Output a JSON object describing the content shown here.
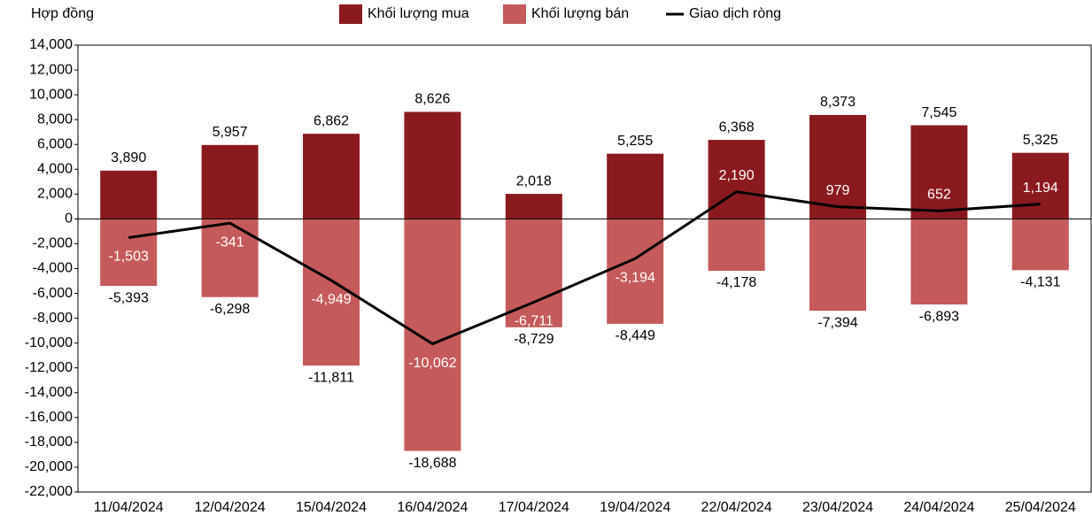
{
  "chart_data": {
    "type": "bar",
    "y_label": "Hợp đồng",
    "categories": [
      "11/04/2024",
      "12/04/2024",
      "15/04/2024",
      "16/04/2024",
      "17/04/2024",
      "19/04/2024",
      "22/04/2024",
      "23/04/2024",
      "24/04/2024",
      "25/04/2024"
    ],
    "series": [
      {
        "name": "Khối lượng mua",
        "color": "#8b1a1f",
        "type": "bar",
        "values": [
          3890,
          5957,
          6862,
          8626,
          2018,
          5255,
          6368,
          8373,
          7545,
          5325
        ],
        "value_labels": [
          "3,890",
          "5,957",
          "6,862",
          "8,626",
          "2,018",
          "5,255",
          "6,368",
          "8,373",
          "7,545",
          "5,325"
        ]
      },
      {
        "name": "Khối lượng bán",
        "color": "#c55a5a",
        "type": "bar",
        "values": [
          -5393,
          -6298,
          -11811,
          -18688,
          -8729,
          -8449,
          -4178,
          -7394,
          -6893,
          -4131
        ],
        "value_labels": [
          "-5,393",
          "-6,298",
          "-11,811",
          "-18,688",
          "-8,729",
          "-8,449",
          "-4,178",
          "-7,394",
          "-6,893",
          "-4,131"
        ]
      },
      {
        "name": "Giao dịch ròng",
        "color": "#000000",
        "type": "line",
        "values": [
          -1503,
          -341,
          -4949,
          -10062,
          -6711,
          -3194,
          2190,
          979,
          652,
          1194
        ],
        "value_labels": [
          "-1,503",
          "-341",
          "-4,949",
          "-10,062",
          "-6,711",
          "-3,194",
          "2,190",
          "979",
          "652",
          "1,194"
        ]
      }
    ],
    "ylim": [
      -22000,
      14000
    ],
    "yticks": [
      {
        "value": -22000,
        "label": "-22,000"
      },
      {
        "value": -20000,
        "label": "-20,000"
      },
      {
        "value": -18000,
        "label": "-18,000"
      },
      {
        "value": -16000,
        "label": "-16,000"
      },
      {
        "value": -14000,
        "label": "-14,000"
      },
      {
        "value": -12000,
        "label": "-12,000"
      },
      {
        "value": -10000,
        "label": "-10,000"
      },
      {
        "value": -8000,
        "label": "-8,000"
      },
      {
        "value": -6000,
        "label": "-6,000"
      },
      {
        "value": -4000,
        "label": "-4,000"
      },
      {
        "value": -2000,
        "label": "-2,000"
      },
      0,
      {
        "value": 2000,
        "label": "2,000"
      },
      {
        "value": 4000,
        "label": "4,000"
      },
      {
        "value": 6000,
        "label": "6,000"
      },
      {
        "value": 8000,
        "label": "8,000"
      },
      {
        "value": 10000,
        "label": "10,000"
      },
      {
        "value": 12000,
        "label": "12,000"
      },
      {
        "value": 14000,
        "label": "14,000"
      }
    ]
  }
}
